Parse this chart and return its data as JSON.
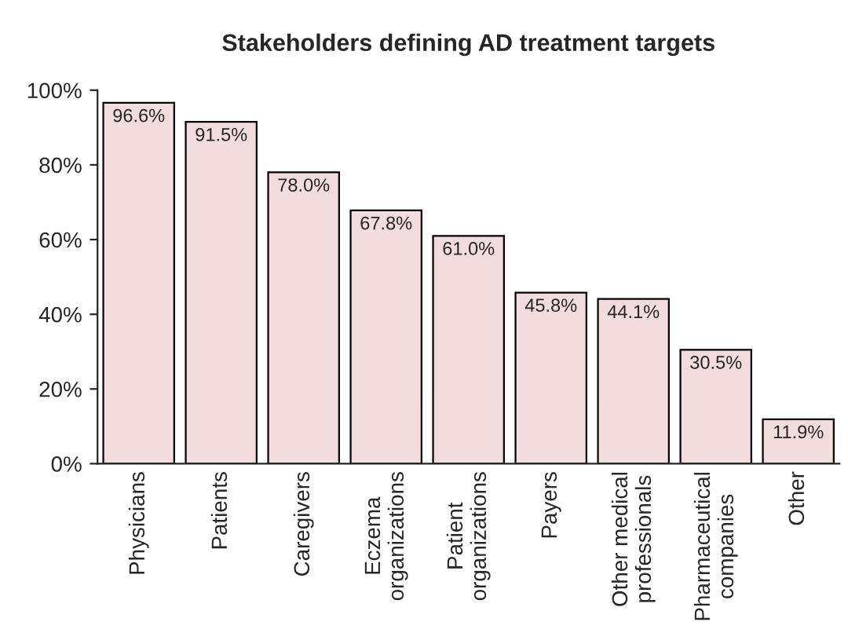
{
  "chart_data": {
    "type": "bar",
    "title": "Stakeholders defining AD treatment targets",
    "categories": [
      "Physicians",
      "Patients",
      "Caregivers",
      "Eczema\norganizations",
      "Patient\norganizations",
      "Payers",
      "Other medical\nprofessionals",
      "Pharmaceutical\ncompanies",
      "Other"
    ],
    "values": [
      96.6,
      91.5,
      78.0,
      67.8,
      61.0,
      45.8,
      44.1,
      30.5,
      11.9
    ],
    "value_labels": [
      "96.6%",
      "91.5%",
      "78.0%",
      "67.8%",
      "61.0%",
      "45.8%",
      "44.1%",
      "30.5%",
      "11.9%"
    ],
    "color": "#f2dcdd",
    "ylim": [
      0,
      100
    ],
    "yticks": [
      {
        "value": 0,
        "label": "0%"
      },
      {
        "value": 20,
        "label": "20%"
      },
      {
        "value": 40,
        "label": "40%"
      },
      {
        "value": 60,
        "label": "60%"
      },
      {
        "value": 80,
        "label": "80%"
      },
      {
        "value": 100,
        "label": "100%"
      }
    ],
    "grid": false,
    "legend": false
  }
}
